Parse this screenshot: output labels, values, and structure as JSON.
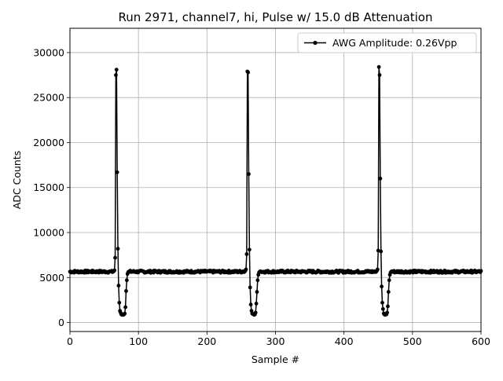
{
  "chart_data": {
    "type": "line",
    "title": "Run 2971, channel7, hi, Pulse w/ 15.0 dB Attenuation",
    "xlabel": "Sample #",
    "ylabel": "ADC Counts",
    "xlim": [
      0,
      600
    ],
    "ylim": [
      -1000,
      32700
    ],
    "x_ticks": [
      0,
      100,
      200,
      300,
      400,
      500,
      600
    ],
    "y_ticks": [
      0,
      5000,
      10000,
      15000,
      20000,
      25000,
      30000
    ],
    "x_tick_labels": [
      "0",
      "100",
      "200",
      "300",
      "400",
      "500",
      "600"
    ],
    "y_tick_labels": [
      "0",
      "5000",
      "10000",
      "15000",
      "20000",
      "25000",
      "30000"
    ],
    "grid": true,
    "legend_position": "top-right",
    "baseline": 5650,
    "pulses": [
      {
        "x": [
          60,
          61,
          62,
          63,
          64,
          65,
          66,
          67,
          68,
          69,
          70,
          71,
          72,
          73,
          74,
          75,
          76,
          77,
          78,
          79,
          80,
          81,
          82,
          83,
          84,
          85,
          86,
          87
        ],
        "y": [
          5700,
          5750,
          5600,
          5650,
          5700,
          5800,
          7200,
          27500,
          28100,
          16700,
          8200,
          4100,
          2200,
          1300,
          1100,
          900,
          850,
          900,
          850,
          900,
          1000,
          1700,
          3500,
          4700,
          5400,
          5600,
          5650,
          5700
        ]
      },
      {
        "x": [
          252,
          253,
          254,
          255,
          256,
          257,
          258,
          259,
          260,
          261,
          262,
          263,
          264,
          265,
          266,
          267,
          268,
          269,
          270,
          271,
          272,
          273,
          274,
          275,
          276,
          277,
          278
        ],
        "y": [
          5650,
          5700,
          5600,
          5650,
          5750,
          5900,
          7600,
          27900,
          27800,
          16500,
          8100,
          3900,
          2000,
          1300,
          1000,
          950,
          900,
          850,
          900,
          1100,
          2100,
          3400,
          4700,
          5300,
          5550,
          5650,
          5700
        ]
      },
      {
        "x": [
          444,
          445,
          446,
          447,
          448,
          449,
          450,
          451,
          452,
          453,
          454,
          455,
          456,
          457,
          458,
          459,
          460,
          461,
          462,
          463,
          464,
          465,
          466,
          467,
          468,
          469,
          470
        ],
        "y": [
          5650,
          5700,
          5600,
          5650,
          5750,
          5900,
          8000,
          28400,
          27500,
          16000,
          7900,
          4000,
          2200,
          1500,
          1000,
          900,
          850,
          950,
          900,
          1100,
          1800,
          3400,
          4700,
          5300,
          5550,
          5650,
          5700
        ]
      }
    ],
    "series": [
      {
        "name": "AWG Amplitude: 0.26Vpp",
        "color": "#000000",
        "marker": "circle"
      }
    ]
  }
}
